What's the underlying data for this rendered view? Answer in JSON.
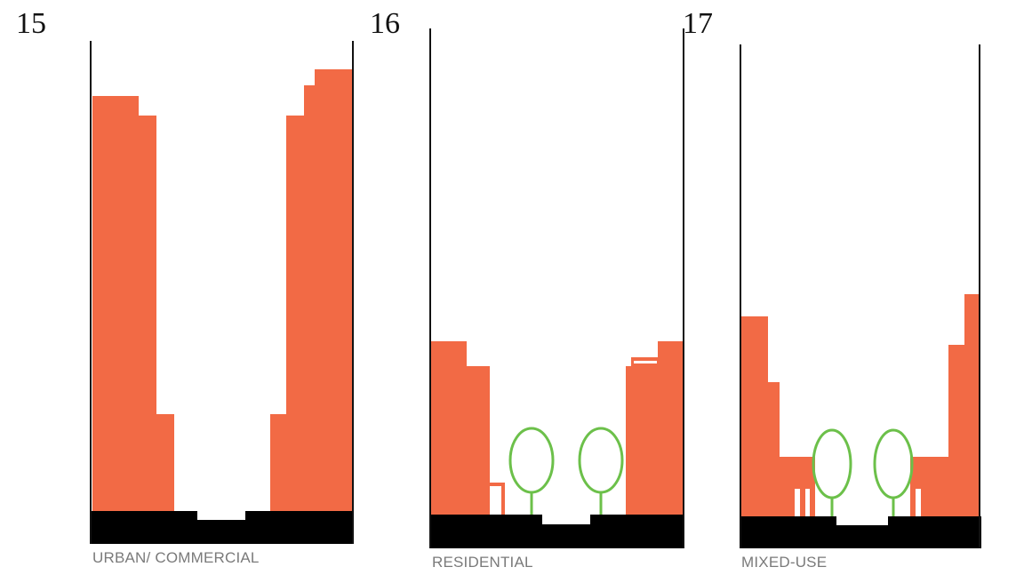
{
  "panels": [
    {
      "number": "15",
      "caption": "URBAN/ COMMERCIAL"
    },
    {
      "number": "16",
      "caption": "RESIDENTIAL"
    },
    {
      "number": "17",
      "caption": "MIXED-USE"
    }
  ],
  "colors": {
    "building": "#f26a45",
    "ground": "#000000",
    "tree": "#6cc04a",
    "line": "#111111",
    "caption": "#7a7a7a"
  }
}
